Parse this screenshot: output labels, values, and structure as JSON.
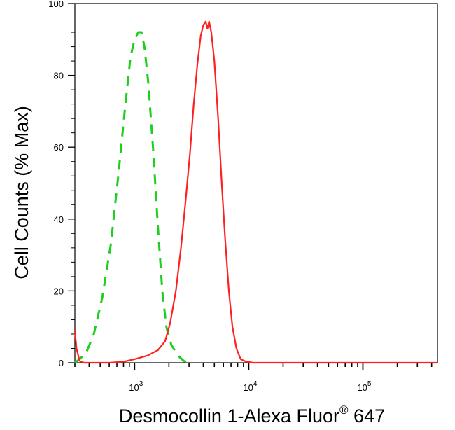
{
  "chart_data": {
    "type": "line",
    "title": "",
    "xlabel": "Desmocollin 1-Alexa Fluor",
    "xlabel_superscript": "®",
    "xlabel_suffix": " 647",
    "ylabel": "Cell Counts (% Max)",
    "x_scale": "log",
    "xlim": [
      300,
      450000
    ],
    "ylim": [
      0,
      100
    ],
    "yticks": [
      0,
      20,
      40,
      60,
      80,
      100
    ],
    "ytick_labels": [
      "0",
      "20",
      "40",
      "60",
      "80",
      "100"
    ],
    "xticks_major": [
      {
        "value": 1000,
        "base": "10",
        "exp": "3"
      },
      {
        "value": 10000,
        "base": "10",
        "exp": "4"
      },
      {
        "value": 100000,
        "base": "10",
        "exp": "5"
      }
    ],
    "grid": false,
    "legend": "none",
    "series": [
      {
        "color": "#1fcf1f",
        "dash": true,
        "points": [
          [
            300,
            0
          ],
          [
            330,
            1
          ],
          [
            380,
            3
          ],
          [
            440,
            8
          ],
          [
            520,
            18
          ],
          [
            620,
            33
          ],
          [
            720,
            52
          ],
          [
            820,
            70
          ],
          [
            920,
            85
          ],
          [
            1000,
            90
          ],
          [
            1080,
            92
          ],
          [
            1150,
            92
          ],
          [
            1220,
            88
          ],
          [
            1320,
            78
          ],
          [
            1450,
            60
          ],
          [
            1600,
            38
          ],
          [
            1750,
            20
          ],
          [
            1900,
            10
          ],
          [
            2100,
            5
          ],
          [
            2400,
            2
          ],
          [
            2700,
            0.5
          ],
          [
            3000,
            0
          ]
        ]
      },
      {
        "color": "#ff2020",
        "dash": false,
        "points": [
          [
            300,
            9
          ],
          [
            310,
            4
          ],
          [
            330,
            0.5
          ],
          [
            360,
            0
          ],
          [
            600,
            0
          ],
          [
            800,
            0.3
          ],
          [
            1000,
            1
          ],
          [
            1300,
            2
          ],
          [
            1600,
            3.5
          ],
          [
            1850,
            6
          ],
          [
            2050,
            11
          ],
          [
            2300,
            20
          ],
          [
            2550,
            32
          ],
          [
            2800,
            45
          ],
          [
            3050,
            58
          ],
          [
            3300,
            72
          ],
          [
            3550,
            83
          ],
          [
            3800,
            91
          ],
          [
            4000,
            94
          ],
          [
            4200,
            95
          ],
          [
            4350,
            93
          ],
          [
            4500,
            95
          ],
          [
            4700,
            92
          ],
          [
            5000,
            84
          ],
          [
            5400,
            68
          ],
          [
            5800,
            50
          ],
          [
            6200,
            35
          ],
          [
            6700,
            20
          ],
          [
            7200,
            10
          ],
          [
            7800,
            4
          ],
          [
            8500,
            1
          ],
          [
            9500,
            0.3
          ],
          [
            11000,
            0
          ],
          [
            450000,
            0
          ]
        ]
      }
    ]
  }
}
